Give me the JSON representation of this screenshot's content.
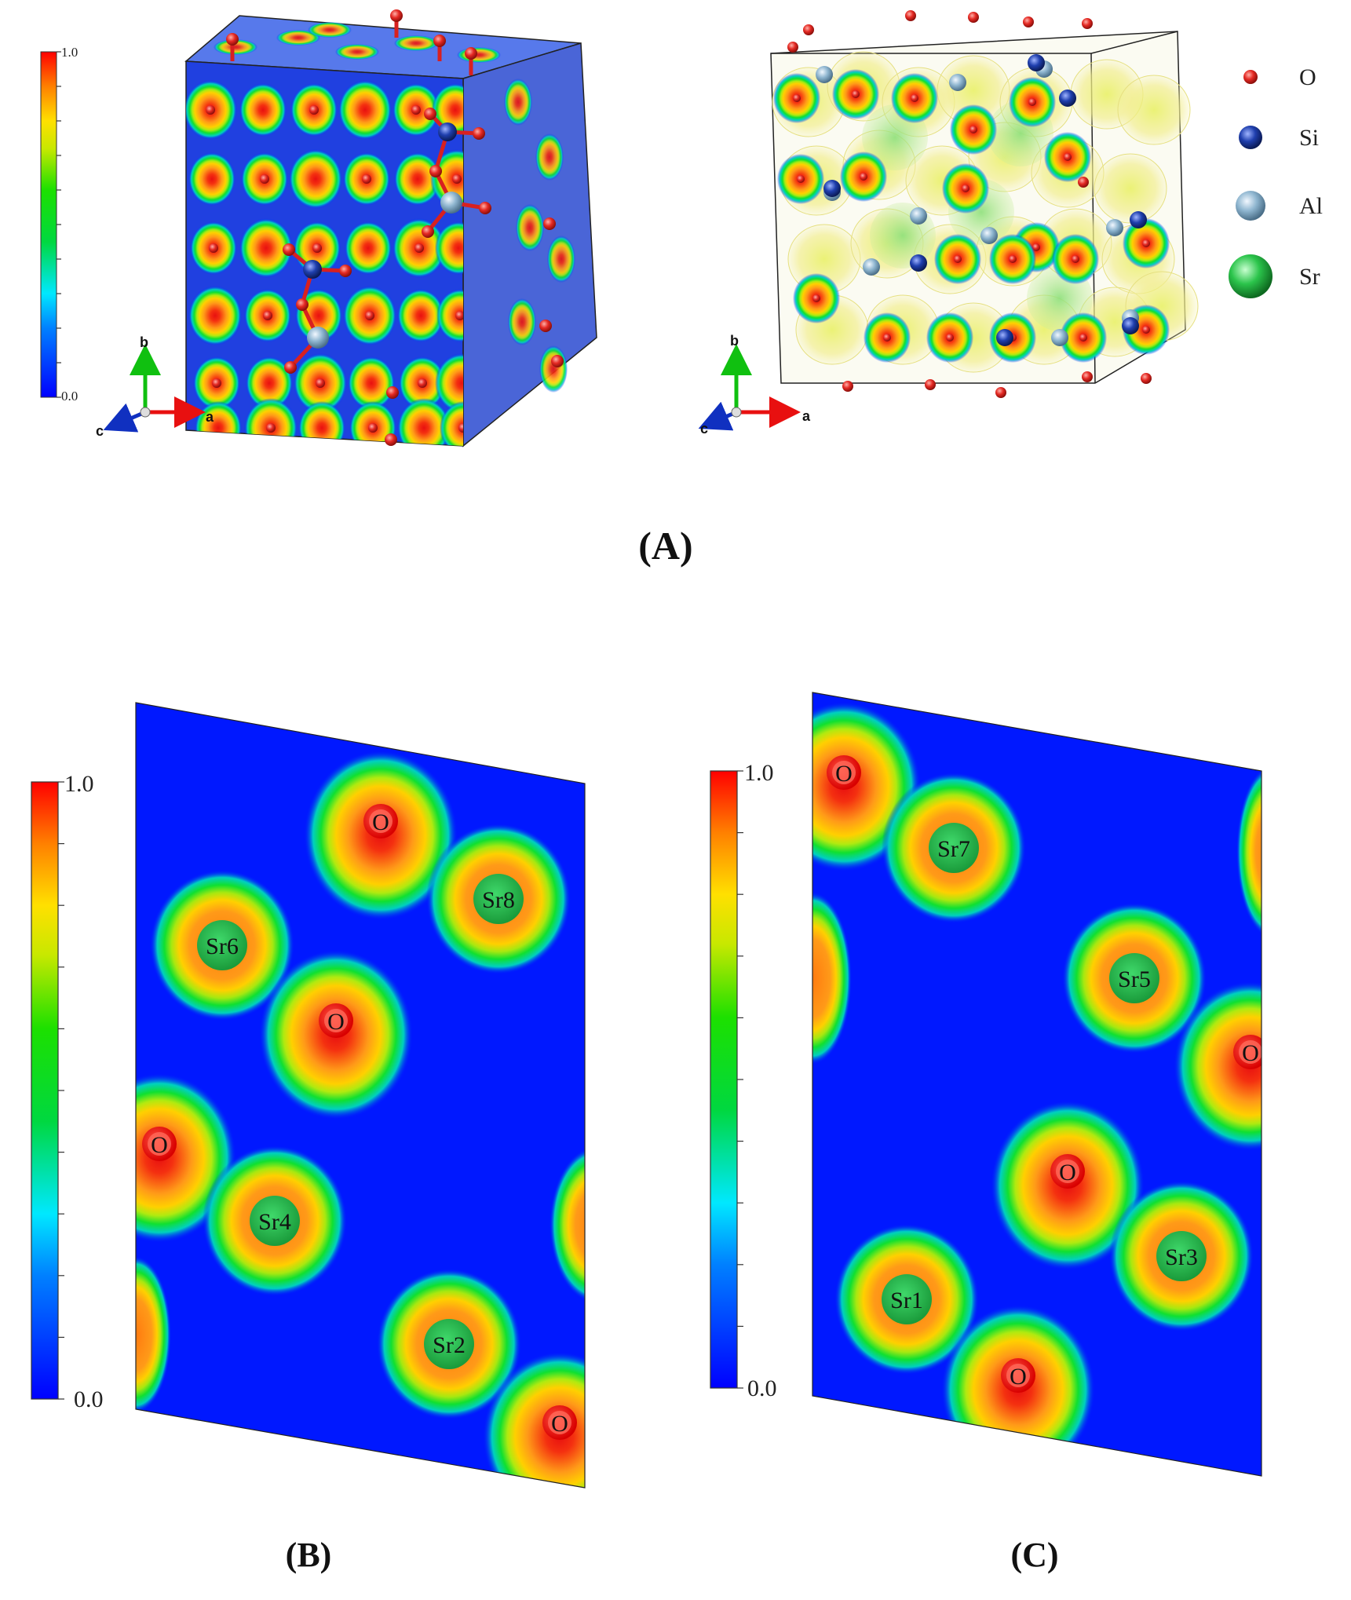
{
  "figure": {
    "panels": [
      {
        "id": "A",
        "label": "(A)"
      },
      {
        "id": "B",
        "label": "(B)"
      },
      {
        "id": "C",
        "label": "(C)"
      }
    ]
  },
  "colorbar": {
    "max_label": "1.0",
    "min_label": "0.0",
    "min": 0.0,
    "max": 1.0
  },
  "axes_indicator": {
    "a": "a",
    "b": "b",
    "c": "c"
  },
  "legend": {
    "items": [
      {
        "label": "O",
        "color": "#e52a24",
        "icon": "oxygen-atom-icon"
      },
      {
        "label": "Si",
        "color": "#1f3fae",
        "icon": "silicon-atom-icon"
      },
      {
        "label": "Al",
        "color": "#8fb6d0",
        "icon": "aluminium-atom-icon"
      },
      {
        "label": "Sr",
        "color": "#2bc44b",
        "icon": "strontium-atom-icon"
      }
    ]
  },
  "slice_B": {
    "atoms": [
      {
        "label": "O",
        "kind": "O"
      },
      {
        "label": "Sr8",
        "kind": "Sr"
      },
      {
        "label": "Sr6",
        "kind": "Sr"
      },
      {
        "label": "O",
        "kind": "O"
      },
      {
        "label": "O",
        "kind": "O"
      },
      {
        "label": "Sr4",
        "kind": "Sr"
      },
      {
        "label": "Sr2",
        "kind": "Sr"
      },
      {
        "label": "O",
        "kind": "O"
      }
    ]
  },
  "slice_C": {
    "atoms": [
      {
        "label": "O",
        "kind": "O"
      },
      {
        "label": "Sr7",
        "kind": "Sr"
      },
      {
        "label": "Sr5",
        "kind": "Sr"
      },
      {
        "label": "O",
        "kind": "O"
      },
      {
        "label": "O",
        "kind": "O"
      },
      {
        "label": "Sr3",
        "kind": "Sr"
      },
      {
        "label": "Sr1",
        "kind": "Sr"
      },
      {
        "label": "O",
        "kind": "O"
      }
    ]
  },
  "colors": {
    "high": "#ff0000",
    "mid": "#00e000",
    "low": "#0018ff",
    "oxygen": "#e52a24",
    "silicon": "#1f3fae",
    "aluminium": "#8fb6d0",
    "strontium": "#2bc44b"
  }
}
